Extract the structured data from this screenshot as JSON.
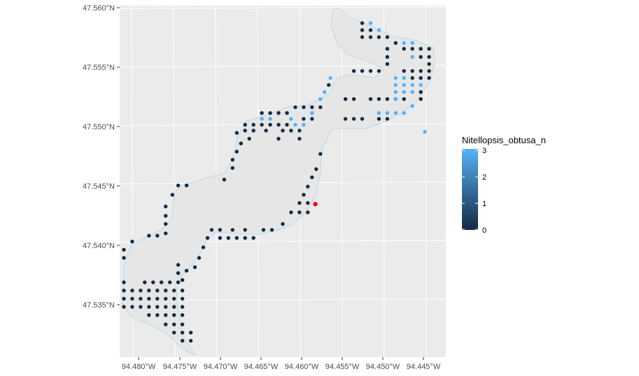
{
  "colors": {
    "panel": "#ebebeb",
    "grid": "#ffffff",
    "lake_fill": "#e6e6e6",
    "lake_outline": "#a6d8ea",
    "dark": "#132b43",
    "light": "#56b1f7",
    "highlight": "#ff0000"
  },
  "x_labels": [
    "94.480°W",
    "94.475°W",
    "94.470°W",
    "94.465°W",
    "94.460°W",
    "94.455°W",
    "94.450°W",
    "94.445°W"
  ],
  "y_labels": [
    "47.560°N",
    "47.555°N",
    "47.550°N",
    "47.545°N",
    "47.540°N",
    "47.535°N"
  ],
  "legend": {
    "title": "Nitellopsis_obtusa_n",
    "labels": [
      "3",
      "2",
      "1",
      "0"
    ]
  },
  "chart_data": {
    "type": "scatter",
    "variable": "Nitellopsis_obtusa_n",
    "x_range": [
      -94.4815,
      -94.4425
    ],
    "y_range": [
      47.5301,
      47.5602
    ],
    "color_range": [
      0,
      3
    ],
    "highlight_point": [
      -94.4581,
      47.5432
    ],
    "lake_outline": [
      [
        -94.456,
        47.5598
      ],
      [
        -94.4553,
        47.56
      ],
      [
        -94.454,
        47.5592
      ],
      [
        -94.451,
        47.5583
      ],
      [
        -94.449,
        47.5576
      ],
      [
        -94.446,
        47.5572
      ],
      [
        -94.444,
        47.5566
      ],
      [
        -94.4438,
        47.5553
      ],
      [
        -94.4444,
        47.5537
      ],
      [
        -94.446,
        47.552
      ],
      [
        -94.448,
        47.5509
      ],
      [
        -94.45,
        47.5502
      ],
      [
        -94.452,
        47.5497
      ],
      [
        -94.454,
        47.5497
      ],
      [
        -94.456,
        47.5497
      ],
      [
        -94.4573,
        47.548
      ],
      [
        -94.4575,
        47.546
      ],
      [
        -94.458,
        47.544
      ],
      [
        -94.4592,
        47.5425
      ],
      [
        -94.4608,
        47.5415
      ],
      [
        -94.4625,
        47.541
      ],
      [
        -94.465,
        47.5406
      ],
      [
        -94.468,
        47.5407
      ],
      [
        -94.47,
        47.5408
      ],
      [
        -94.4712,
        47.54
      ],
      [
        -94.4722,
        47.5385
      ],
      [
        -94.4735,
        47.5375
      ],
      [
        -94.4748,
        47.5365
      ],
      [
        -94.4745,
        47.534
      ],
      [
        -94.474,
        47.532
      ],
      [
        -94.4725,
        47.5303
      ],
      [
        -94.474,
        47.5308
      ],
      [
        -94.476,
        47.5322
      ],
      [
        -94.4782,
        47.533
      ],
      [
        -94.48,
        47.5335
      ],
      [
        -94.4812,
        47.5345
      ],
      [
        -94.481,
        47.538
      ],
      [
        -94.48,
        47.5398
      ],
      [
        -94.478,
        47.5405
      ],
      [
        -94.4765,
        47.541
      ],
      [
        -94.4752,
        47.542
      ],
      [
        -94.475,
        47.5442
      ],
      [
        -94.474,
        47.5448
      ],
      [
        -94.472,
        47.5452
      ],
      [
        -94.471,
        47.5455
      ],
      [
        -94.469,
        47.5458
      ],
      [
        -94.468,
        47.547
      ],
      [
        -94.4674,
        47.549
      ],
      [
        -94.4664,
        47.5503
      ],
      [
        -94.464,
        47.5508
      ],
      [
        -94.4615,
        47.5515
      ],
      [
        -94.459,
        47.5517
      ],
      [
        -94.4575,
        47.5522
      ],
      [
        -94.4563,
        47.5528
      ],
      [
        -94.456,
        47.5535
      ],
      [
        -94.4555,
        47.554
      ],
      [
        -94.454,
        47.5543
      ],
      [
        -94.451,
        47.554
      ],
      [
        -94.45,
        47.5548
      ],
      [
        -94.452,
        47.5555
      ],
      [
        -94.4543,
        47.556
      ],
      [
        -94.4555,
        47.557
      ],
      [
        -94.4562,
        47.5585
      ]
    ],
    "points_count_0": [
      [
        -94.4525,
        47.5587
      ],
      [
        -94.4525,
        47.5581
      ],
      [
        -94.4525,
        47.5575
      ],
      [
        -94.4515,
        47.5581
      ],
      [
        -94.4515,
        47.5575
      ],
      [
        -94.4505,
        47.5575
      ],
      [
        -94.4495,
        47.5575
      ],
      [
        -94.4485,
        47.557
      ],
      [
        -94.4465,
        47.5565
      ],
      [
        -94.4455,
        47.5565
      ],
      [
        -94.4445,
        47.5565
      ],
      [
        -94.4475,
        47.5565
      ],
      [
        -94.4445,
        47.5558
      ],
      [
        -94.4445,
        47.5552
      ],
      [
        -94.4445,
        47.5546
      ],
      [
        -94.4445,
        47.554
      ],
      [
        -94.4455,
        47.5558
      ],
      [
        -94.4455,
        47.5546
      ],
      [
        -94.4455,
        47.554
      ],
      [
        -94.4465,
        47.554
      ],
      [
        -94.4495,
        47.5565
      ],
      [
        -94.4495,
        47.5558
      ],
      [
        -94.4495,
        47.5552
      ],
      [
        -94.4505,
        47.5546
      ],
      [
        -94.4515,
        47.5546
      ],
      [
        -94.4525,
        47.5546
      ],
      [
        -94.4535,
        47.5546
      ],
      [
        -94.4465,
        47.5546
      ],
      [
        -94.4475,
        47.5546
      ],
      [
        -94.4455,
        47.5528
      ],
      [
        -94.4485,
        47.5522
      ],
      [
        -94.4495,
        47.5522
      ],
      [
        -94.4505,
        47.5522
      ],
      [
        -94.4515,
        47.5522
      ],
      [
        -94.4535,
        47.5522
      ],
      [
        -94.4545,
        47.5522
      ],
      [
        -94.4495,
        47.5505
      ],
      [
        -94.4505,
        47.5505
      ],
      [
        -94.4525,
        47.5505
      ],
      [
        -94.4535,
        47.5505
      ],
      [
        -94.4545,
        47.5505
      ],
      [
        -94.4455,
        47.5522
      ],
      [
        -94.4475,
        47.5522
      ],
      [
        -94.4565,
        47.5534
      ],
      [
        -94.4575,
        47.5515
      ],
      [
        -94.4585,
        47.5515
      ],
      [
        -94.4595,
        47.5515
      ],
      [
        -94.4605,
        47.5515
      ],
      [
        -94.4615,
        47.551
      ],
      [
        -94.4625,
        47.551
      ],
      [
        -94.4635,
        47.551
      ],
      [
        -94.4645,
        47.551
      ],
      [
        -94.4585,
        47.5505
      ],
      [
        -94.4595,
        47.5505
      ],
      [
        -94.4615,
        47.55
      ],
      [
        -94.4625,
        47.55
      ],
      [
        -94.4635,
        47.55
      ],
      [
        -94.4645,
        47.55
      ],
      [
        -94.4655,
        47.55
      ],
      [
        -94.4665,
        47.55
      ],
      [
        -94.46,
        47.5495
      ],
      [
        -94.461,
        47.5495
      ],
      [
        -94.462,
        47.5495
      ],
      [
        -94.464,
        47.5495
      ],
      [
        -94.4655,
        47.5495
      ],
      [
        -94.4665,
        47.5495
      ],
      [
        -94.4675,
        47.5493
      ],
      [
        -94.4625,
        47.5488
      ],
      [
        -94.466,
        47.5488
      ],
      [
        -94.46,
        47.5488
      ],
      [
        -94.467,
        47.5484
      ],
      [
        -94.4675,
        47.5477
      ],
      [
        -94.468,
        47.547
      ],
      [
        -94.468,
        47.5463
      ],
      [
        -94.469,
        47.5453
      ],
      [
        -94.4575,
        47.5475
      ],
      [
        -94.458,
        47.5462
      ],
      [
        -94.4585,
        47.5455
      ],
      [
        -94.459,
        47.5447
      ],
      [
        -94.4595,
        47.544
      ],
      [
        -94.46,
        47.5433
      ],
      [
        -94.459,
        47.5433
      ],
      [
        -94.46,
        47.5425
      ],
      [
        -94.459,
        47.5425
      ],
      [
        -94.461,
        47.5425
      ],
      [
        -94.462,
        47.5415
      ],
      [
        -94.4633,
        47.541
      ],
      [
        -94.4643,
        47.541
      ],
      [
        -94.4655,
        47.5403
      ],
      [
        -94.4665,
        47.5403
      ],
      [
        -94.4675,
        47.5403
      ],
      [
        -94.4685,
        47.5403
      ],
      [
        -94.4695,
        47.5403
      ],
      [
        -94.4665,
        47.541
      ],
      [
        -94.468,
        47.541
      ],
      [
        -94.4695,
        47.541
      ],
      [
        -94.4705,
        47.541
      ],
      [
        -94.471,
        47.5403
      ],
      [
        -94.4715,
        47.5395
      ],
      [
        -94.472,
        47.5386
      ],
      [
        -94.4725,
        47.5378
      ],
      [
        -94.4735,
        47.5375
      ],
      [
        -94.474,
        47.5367
      ],
      [
        -94.4745,
        47.5448
      ],
      [
        -94.4735,
        47.5448
      ],
      [
        -94.4752,
        47.544
      ],
      [
        -94.476,
        47.543
      ],
      [
        -94.476,
        47.5422
      ],
      [
        -94.476,
        47.5415
      ],
      [
        -94.476,
        47.5407
      ],
      [
        -94.477,
        47.5405
      ],
      [
        -94.478,
        47.5405
      ],
      [
        -94.48,
        47.54
      ],
      [
        -94.481,
        47.5393
      ],
      [
        -94.481,
        47.5386
      ],
      [
        -94.4745,
        47.538
      ],
      [
        -94.4745,
        47.5373
      ],
      [
        -94.4745,
        47.5365
      ],
      [
        -94.4755,
        47.5365
      ],
      [
        -94.4765,
        47.5365
      ],
      [
        -94.4775,
        47.5365
      ],
      [
        -94.4785,
        47.5365
      ],
      [
        -94.481,
        47.5365
      ],
      [
        -94.481,
        47.5358
      ],
      [
        -94.48,
        47.5358
      ],
      [
        -94.479,
        47.5358
      ],
      [
        -94.478,
        47.5358
      ],
      [
        -94.477,
        47.5358
      ],
      [
        -94.476,
        47.5358
      ],
      [
        -94.475,
        47.5358
      ],
      [
        -94.474,
        47.5358
      ],
      [
        -94.481,
        47.5351
      ],
      [
        -94.48,
        47.5351
      ],
      [
        -94.479,
        47.5351
      ],
      [
        -94.478,
        47.5351
      ],
      [
        -94.477,
        47.5351
      ],
      [
        -94.476,
        47.5351
      ],
      [
        -94.475,
        47.5351
      ],
      [
        -94.474,
        47.5351
      ],
      [
        -94.481,
        47.5344
      ],
      [
        -94.48,
        47.5344
      ],
      [
        -94.479,
        47.5344
      ],
      [
        -94.478,
        47.5344
      ],
      [
        -94.477,
        47.5344
      ],
      [
        -94.476,
        47.5344
      ],
      [
        -94.475,
        47.5344
      ],
      [
        -94.474,
        47.5344
      ],
      [
        -94.478,
        47.5337
      ],
      [
        -94.477,
        47.5337
      ],
      [
        -94.476,
        47.5337
      ],
      [
        -94.475,
        47.5337
      ],
      [
        -94.474,
        47.5337
      ],
      [
        -94.476,
        47.5329
      ],
      [
        -94.475,
        47.5329
      ],
      [
        -94.474,
        47.5329
      ],
      [
        -94.475,
        47.5322
      ],
      [
        -94.474,
        47.5322
      ],
      [
        -94.473,
        47.5322
      ],
      [
        -94.474,
        47.5315
      ],
      [
        -94.473,
        47.5315
      ]
    ],
    "points_count_3": [
      [
        -94.4515,
        47.5587
      ],
      [
        -94.4505,
        47.5581
      ],
      [
        -94.4475,
        47.557
      ],
      [
        -94.4465,
        47.557
      ],
      [
        -94.4465,
        47.5558
      ],
      [
        -94.4475,
        47.554
      ],
      [
        -94.4485,
        47.554
      ],
      [
        -94.4485,
        47.5534
      ],
      [
        -94.4475,
        47.5534
      ],
      [
        -94.4465,
        47.5534
      ],
      [
        -94.4455,
        47.5534
      ],
      [
        -94.4485,
        47.5528
      ],
      [
        -94.4475,
        47.5528
      ],
      [
        -94.4465,
        47.5528
      ],
      [
        -94.4485,
        47.5522
      ],
      [
        -94.4465,
        47.5516
      ],
      [
        -94.4475,
        47.551
      ],
      [
        -94.4485,
        47.551
      ],
      [
        -94.4495,
        47.551
      ],
      [
        -94.4505,
        47.551
      ],
      [
        -94.445,
        47.5494
      ],
      [
        -94.4563,
        47.554
      ],
      [
        -94.457,
        47.5528
      ],
      [
        -94.4575,
        47.5522
      ],
      [
        -94.4585,
        47.551
      ],
      [
        -94.4595,
        47.55
      ],
      [
        -94.4605,
        47.55
      ],
      [
        -94.4635,
        47.5505
      ],
      [
        -94.4645,
        47.5505
      ],
      [
        -94.461,
        47.5505
      ]
    ]
  }
}
